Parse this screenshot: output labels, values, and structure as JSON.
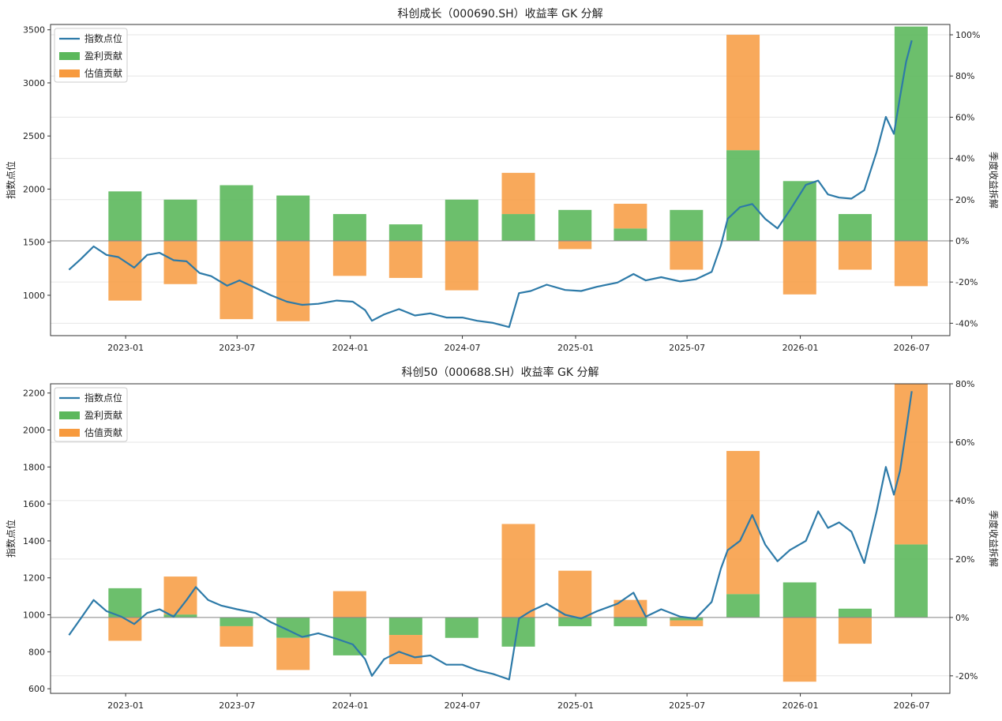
{
  "chart_data": [
    {
      "type": "bar+line",
      "title": "科创成长（000690.SH）收益率 GK 分解",
      "ylabel_left": "指数点位",
      "ylabel_right": "季度收益拆解",
      "ylim_left": [
        620,
        3550
      ],
      "ylim_right": [
        -46,
        105
      ],
      "yticks_left": [
        1000,
        1500,
        2000,
        2500,
        3000,
        3500
      ],
      "yticks_right": [
        -40,
        -20,
        0,
        20,
        40,
        60,
        80,
        100
      ],
      "yticks_right_labels": [
        "-40%",
        "-20%",
        "0%",
        "20%",
        "40%",
        "60%",
        "80%",
        "100%"
      ],
      "xlim": [
        "2022-09-01",
        "2026-09-01"
      ],
      "xticks": [
        "2023-01-01",
        "2023-07-01",
        "2024-01-01",
        "2024-07-01",
        "2025-01-01",
        "2025-07-01",
        "2026-01-01",
        "2026-07-01"
      ],
      "xtick_labels": [
        "2023-01",
        "2023-07",
        "2024-01",
        "2024-07",
        "2025-01",
        "2025-07",
        "2026-01",
        "2026-07"
      ],
      "grid": true,
      "legend": "top-left",
      "legend_entries": [
        "指数点位",
        "盈利贡献",
        "估值贡献"
      ],
      "colors": {
        "line": "#2d7aa8",
        "earnings": "#5cb85c",
        "valuation": "#f79a3e"
      },
      "quarters": [
        "2022-12-31",
        "2023-03-31",
        "2023-06-30",
        "2023-09-30",
        "2023-12-31",
        "2024-03-31",
        "2024-06-30",
        "2024-09-30",
        "2024-12-31",
        "2025-03-31",
        "2025-06-30",
        "2025-09-30",
        "2025-12-31",
        "2026-03-31",
        "2026-06-30"
      ],
      "earnings": [
        24,
        20,
        27,
        22,
        13,
        8,
        20,
        13,
        15,
        6,
        15,
        44,
        29,
        13,
        104
      ],
      "valuation": [
        -29,
        -21,
        -38,
        -39,
        -17,
        -18,
        -24,
        20,
        -4,
        12,
        -14,
        56,
        -26,
        -14,
        -22
      ],
      "index_points": [
        [
          "2022-10-01",
          1240
        ],
        [
          "2022-10-20",
          1340
        ],
        [
          "2022-11-10",
          1460
        ],
        [
          "2022-12-01",
          1380
        ],
        [
          "2022-12-20",
          1360
        ],
        [
          "2023-01-15",
          1260
        ],
        [
          "2023-02-05",
          1380
        ],
        [
          "2023-02-25",
          1400
        ],
        [
          "2023-03-20",
          1330
        ],
        [
          "2023-04-10",
          1320
        ],
        [
          "2023-05-01",
          1210
        ],
        [
          "2023-05-20",
          1180
        ],
        [
          "2023-06-15",
          1090
        ],
        [
          "2023-07-05",
          1140
        ],
        [
          "2023-07-31",
          1070
        ],
        [
          "2023-08-25",
          1000
        ],
        [
          "2023-09-20",
          940
        ],
        [
          "2023-10-15",
          910
        ],
        [
          "2023-11-10",
          920
        ],
        [
          "2023-12-10",
          950
        ],
        [
          "2024-01-05",
          940
        ],
        [
          "2024-01-25",
          860
        ],
        [
          "2024-02-05",
          760
        ],
        [
          "2024-02-25",
          820
        ],
        [
          "2024-03-20",
          870
        ],
        [
          "2024-04-15",
          810
        ],
        [
          "2024-05-10",
          830
        ],
        [
          "2024-06-05",
          790
        ],
        [
          "2024-07-01",
          790
        ],
        [
          "2024-07-25",
          760
        ],
        [
          "2024-08-20",
          740
        ],
        [
          "2024-09-15",
          700
        ],
        [
          "2024-10-01",
          1020
        ],
        [
          "2024-10-20",
          1040
        ],
        [
          "2024-11-15",
          1100
        ],
        [
          "2024-12-15",
          1050
        ],
        [
          "2025-01-10",
          1040
        ],
        [
          "2025-02-05",
          1080
        ],
        [
          "2025-03-10",
          1120
        ],
        [
          "2025-04-05",
          1200
        ],
        [
          "2025-04-25",
          1140
        ],
        [
          "2025-05-20",
          1170
        ],
        [
          "2025-06-20",
          1130
        ],
        [
          "2025-07-15",
          1150
        ],
        [
          "2025-08-10",
          1220
        ],
        [
          "2025-08-25",
          1470
        ],
        [
          "2025-09-05",
          1720
        ],
        [
          "2025-09-25",
          1830
        ],
        [
          "2025-10-15",
          1860
        ],
        [
          "2025-11-05",
          1720
        ],
        [
          "2025-11-25",
          1630
        ],
        [
          "2025-12-15",
          1800
        ],
        [
          "2026-01-10",
          2040
        ],
        [
          "2026-01-30",
          2080
        ],
        [
          "2026-02-15",
          1950
        ],
        [
          "2026-03-05",
          1920
        ],
        [
          "2026-03-25",
          1910
        ],
        [
          "2026-04-15",
          1990
        ],
        [
          "2026-05-05",
          2350
        ],
        [
          "2026-05-20",
          2680
        ],
        [
          "2026-06-02",
          2520
        ],
        [
          "2026-06-12",
          2870
        ],
        [
          "2026-06-22",
          3200
        ],
        [
          "2026-07-01",
          3400
        ]
      ]
    },
    {
      "type": "bar+line",
      "title": "科创50（000688.SH）收益率 GK 分解",
      "ylabel_left": "指数点位",
      "ylabel_right": "季度收益拆解",
      "ylim_left": [
        575,
        2250
      ],
      "ylim_right": [
        -26,
        80
      ],
      "yticks_left": [
        600,
        800,
        1000,
        1200,
        1400,
        1600,
        1800,
        2000,
        2200
      ],
      "yticks_right": [
        -20,
        0,
        20,
        40,
        60,
        80
      ],
      "yticks_right_labels": [
        "-20%",
        "0%",
        "20%",
        "40%",
        "60%",
        "80%"
      ],
      "xlim": [
        "2022-09-01",
        "2026-09-01"
      ],
      "xticks": [
        "2023-01-01",
        "2023-07-01",
        "2024-01-01",
        "2024-07-01",
        "2025-01-01",
        "2025-07-01",
        "2026-01-01",
        "2026-07-01"
      ],
      "xtick_labels": [
        "2023-01",
        "2023-07",
        "2024-01",
        "2024-07",
        "2025-01",
        "2025-07",
        "2026-01",
        "2026-07"
      ],
      "grid": true,
      "legend": "top-left",
      "legend_entries": [
        "指数点位",
        "盈利贡献",
        "估值贡献"
      ],
      "colors": {
        "line": "#2d7aa8",
        "earnings": "#5cb85c",
        "valuation": "#f79a3e"
      },
      "quarters": [
        "2022-12-31",
        "2023-03-31",
        "2023-06-30",
        "2023-09-30",
        "2023-12-31",
        "2024-03-31",
        "2024-06-30",
        "2024-09-30",
        "2024-12-31",
        "2025-03-31",
        "2025-06-30",
        "2025-09-30",
        "2025-12-31",
        "2026-03-31",
        "2026-06-30"
      ],
      "earnings": [
        10,
        1,
        -3,
        -7,
        -13,
        -6,
        -7,
        -10,
        -3,
        -3,
        -1,
        8,
        12,
        3,
        25
      ],
      "valuation": [
        -8,
        13,
        -7,
        -11,
        9,
        -10,
        0,
        32,
        16,
        6,
        -2,
        49,
        -22,
        -9,
        76
      ],
      "index_points": [
        [
          "2022-10-01",
          890
        ],
        [
          "2022-10-20",
          980
        ],
        [
          "2022-11-10",
          1080
        ],
        [
          "2022-12-01",
          1020
        ],
        [
          "2022-12-25",
          990
        ],
        [
          "2023-01-15",
          950
        ],
        [
          "2023-02-05",
          1010
        ],
        [
          "2023-02-25",
          1030
        ],
        [
          "2023-03-20",
          990
        ],
        [
          "2023-04-10",
          1080
        ],
        [
          "2023-04-25",
          1150
        ],
        [
          "2023-05-15",
          1080
        ],
        [
          "2023-06-05",
          1050
        ],
        [
          "2023-07-01",
          1030
        ],
        [
          "2023-07-31",
          1010
        ],
        [
          "2023-08-25",
          960
        ],
        [
          "2023-09-20",
          920
        ],
        [
          "2023-10-15",
          880
        ],
        [
          "2023-11-10",
          900
        ],
        [
          "2023-12-10",
          870
        ],
        [
          "2024-01-05",
          840
        ],
        [
          "2024-01-25",
          760
        ],
        [
          "2024-02-05",
          670
        ],
        [
          "2024-02-25",
          760
        ],
        [
          "2024-03-20",
          800
        ],
        [
          "2024-04-15",
          770
        ],
        [
          "2024-05-10",
          780
        ],
        [
          "2024-06-05",
          730
        ],
        [
          "2024-07-01",
          730
        ],
        [
          "2024-07-25",
          700
        ],
        [
          "2024-08-20",
          680
        ],
        [
          "2024-09-15",
          650
        ],
        [
          "2024-10-01",
          980
        ],
        [
          "2024-10-20",
          1020
        ],
        [
          "2024-11-15",
          1060
        ],
        [
          "2024-12-15",
          1000
        ],
        [
          "2025-01-10",
          980
        ],
        [
          "2025-02-05",
          1020
        ],
        [
          "2025-03-10",
          1060
        ],
        [
          "2025-04-05",
          1120
        ],
        [
          "2025-04-25",
          990
        ],
        [
          "2025-05-20",
          1030
        ],
        [
          "2025-06-20",
          990
        ],
        [
          "2025-07-15",
          980
        ],
        [
          "2025-08-10",
          1070
        ],
        [
          "2025-08-25",
          1250
        ],
        [
          "2025-09-05",
          1350
        ],
        [
          "2025-09-25",
          1400
        ],
        [
          "2025-10-15",
          1540
        ],
        [
          "2025-11-05",
          1380
        ],
        [
          "2025-11-25",
          1290
        ],
        [
          "2025-12-15",
          1350
        ],
        [
          "2026-01-10",
          1400
        ],
        [
          "2026-01-30",
          1560
        ],
        [
          "2026-02-15",
          1470
        ],
        [
          "2026-03-05",
          1500
        ],
        [
          "2026-03-25",
          1450
        ],
        [
          "2026-04-15",
          1280
        ],
        [
          "2026-05-05",
          1560
        ],
        [
          "2026-05-20",
          1800
        ],
        [
          "2026-06-02",
          1650
        ],
        [
          "2026-06-12",
          1780
        ],
        [
          "2026-06-22",
          2000
        ],
        [
          "2026-07-01",
          2210
        ]
      ]
    }
  ]
}
